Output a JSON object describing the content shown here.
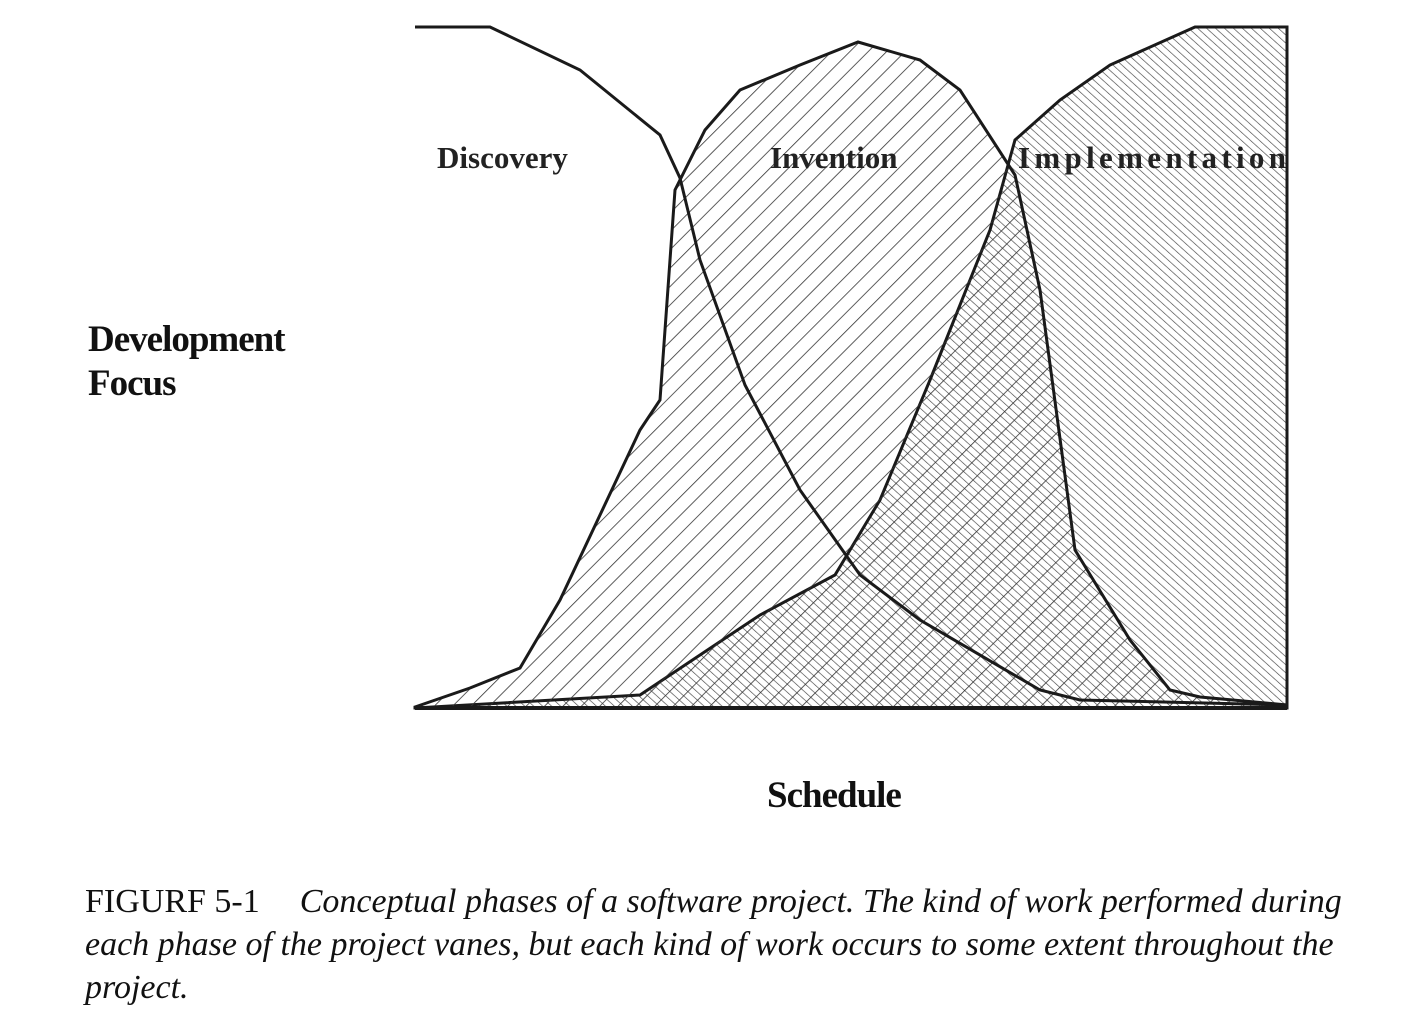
{
  "figure": {
    "y_axis_label_line1": "Development",
    "y_axis_label_line2": "Focus",
    "x_axis_label": "Schedule",
    "phases": [
      {
        "label": "Discovery",
        "fill": "none"
      },
      {
        "label": "Invention",
        "fill": "sparse diagonal hatch"
      },
      {
        "label": "Implementation",
        "fill": "dense diagonal hatch"
      }
    ],
    "colors": {
      "line": "#1a1a1a",
      "background": "#ffffff"
    }
  },
  "caption": {
    "number": "FIGURF 5-1",
    "text": "Conceptual phases of a software project. The kind of work performed during each phase of the project vanes, but each kind of work occurs to some extent throughout the project."
  }
}
